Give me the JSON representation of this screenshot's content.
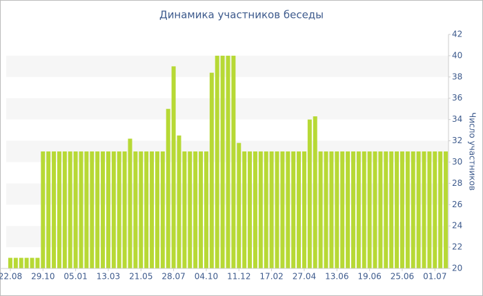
{
  "chart_data": {
    "type": "bar",
    "title": "Динамика участников беседы",
    "y_label": "Число участников",
    "categories": [
      "22.08",
      null,
      null,
      null,
      null,
      null,
      "29.10",
      null,
      null,
      null,
      null,
      null,
      "05.01",
      null,
      null,
      null,
      null,
      null,
      "13.03",
      null,
      null,
      null,
      null,
      null,
      "21.05",
      null,
      null,
      null,
      null,
      null,
      "28.07",
      null,
      null,
      null,
      null,
      null,
      "04.10",
      null,
      null,
      null,
      null,
      null,
      "11.12",
      null,
      null,
      null,
      null,
      null,
      "17.02",
      null,
      null,
      null,
      null,
      null,
      "27.04",
      null,
      null,
      null,
      null,
      null,
      "13.06",
      null,
      null,
      null,
      null,
      null,
      "19.06",
      null,
      null,
      null,
      null,
      null,
      "25.06",
      null,
      null,
      null,
      null,
      null,
      "01.07",
      null,
      null
    ],
    "values": [
      21,
      21,
      21,
      21,
      21,
      21,
      31,
      31,
      31,
      31,
      31,
      31,
      31,
      31,
      31,
      31,
      31,
      31,
      31,
      31,
      31,
      31,
      32.2,
      31,
      31,
      31,
      31,
      31,
      31,
      35,
      39,
      32.5,
      31,
      31,
      31,
      31,
      31,
      38.4,
      40,
      40,
      40,
      40,
      31.8,
      31,
      31,
      31,
      31,
      31,
      31,
      31,
      31,
      31,
      31,
      31,
      31,
      34,
      34.3,
      31,
      31,
      31,
      31,
      31,
      31,
      31,
      31,
      31,
      31,
      31,
      31,
      31,
      31,
      31,
      31,
      31,
      31,
      31,
      31,
      31,
      31,
      31,
      31
    ],
    "color": "#b7d935",
    "ylim": [
      20,
      42
    ],
    "yticks": [
      20,
      22,
      24,
      26,
      28,
      30,
      32,
      34,
      36,
      38,
      40,
      42
    ],
    "y_axis_side": "right",
    "banded_background": true
  }
}
